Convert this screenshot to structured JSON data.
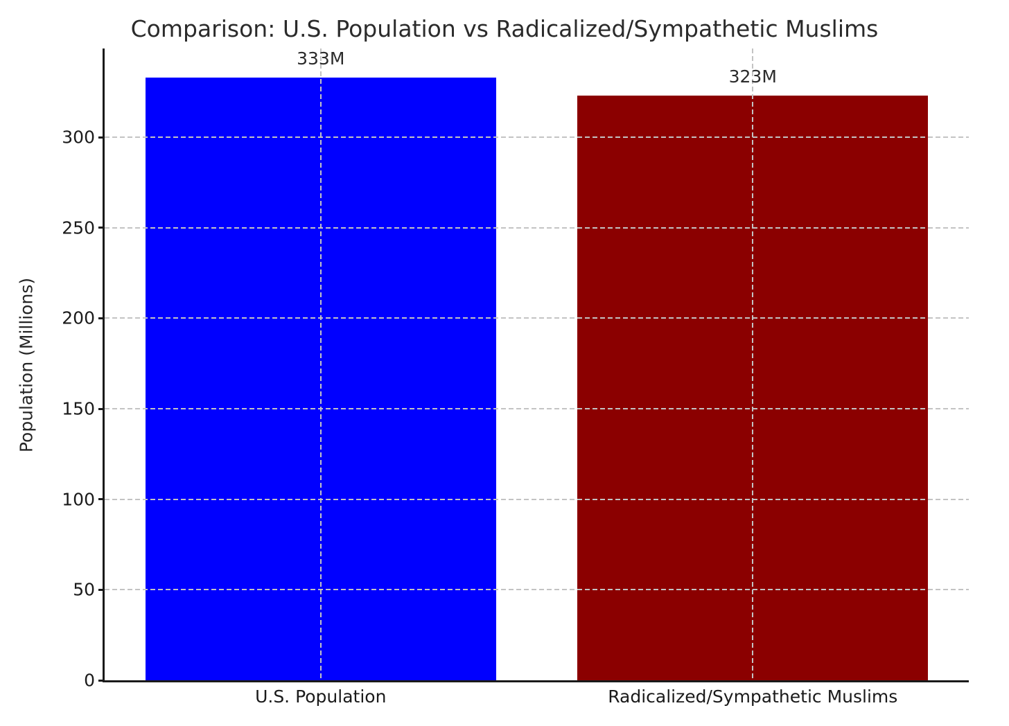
{
  "chart_data": {
    "type": "bar",
    "title": "Comparison: U.S. Population vs Radicalized/Sympathetic Muslims",
    "xlabel": "",
    "ylabel": "Population (Millions)",
    "categories": [
      "U.S. Population",
      "Radicalized/Sympathetic Muslims"
    ],
    "values": [
      333,
      323
    ],
    "bar_labels": [
      "333M",
      "323M"
    ],
    "bar_colors": [
      "#0000ff",
      "#8b0000"
    ],
    "yticks": [
      0,
      50,
      100,
      150,
      200,
      250,
      300
    ],
    "ylim": [
      0,
      349
    ],
    "grid": {
      "horizontal": true,
      "vertical": true,
      "style": "dashed",
      "color": "#c3c3c3"
    },
    "legend_position": "none",
    "axis_color": "#1a1a1a",
    "background_color": "#ffffff"
  }
}
